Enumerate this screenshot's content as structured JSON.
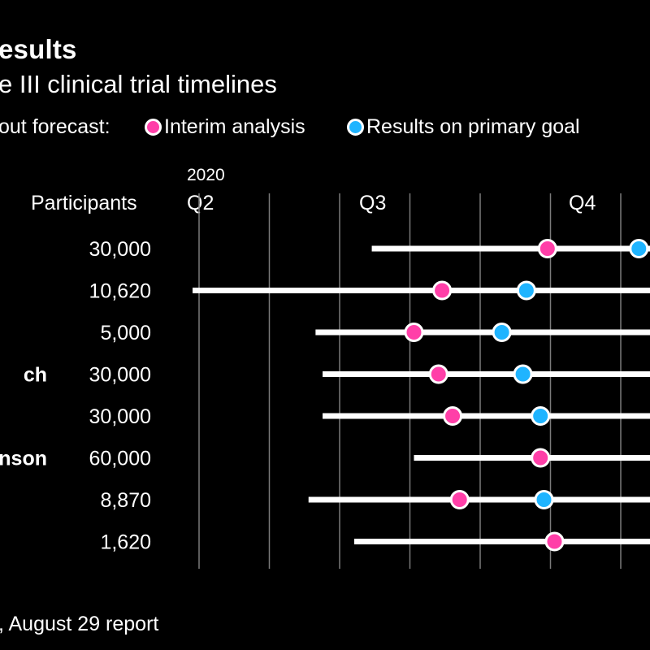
{
  "header": {
    "title": "esults",
    "subtitle": "e III clinical trial timelines",
    "legend_prefix": "out forecast:",
    "legend": [
      {
        "label": "Interim analysis",
        "color": "#ff3fa8"
      },
      {
        "label": "Results on primary goal",
        "color": "#1fb4ff"
      }
    ]
  },
  "footer": {
    "source": ", August 29 report"
  },
  "chart_data": {
    "type": "dot-range timeline",
    "year_label": "2020",
    "participants_header": "Participants",
    "quarters": [
      "Q2",
      "Q3",
      "Q4"
    ],
    "x_unit": "months into 2020 (Apr 1 = 3.0)",
    "xlim": [
      3.0,
      9.5
    ],
    "grid": true,
    "rows": [
      {
        "company": "",
        "participants": "30,000",
        "start": 5.55,
        "interim": 8.05,
        "primary": 9.35
      },
      {
        "company": "",
        "participants": "10,620",
        "start": 3.0,
        "interim": 6.55,
        "primary": 7.75
      },
      {
        "company": "",
        "participants": "5,000",
        "start": 4.75,
        "interim": 6.15,
        "primary": 7.4
      },
      {
        "company": "ch",
        "participants": "30,000",
        "start": 4.85,
        "interim": 6.5,
        "primary": 7.7
      },
      {
        "company": "",
        "participants": "30,000",
        "start": 4.85,
        "interim": 6.7,
        "primary": 7.95
      },
      {
        "company": "nson",
        "participants": "60,000",
        "start": 6.15,
        "interim": 7.95,
        "primary": null
      },
      {
        "company": "",
        "participants": "8,870",
        "start": 4.65,
        "interim": 6.8,
        "primary": 8.0
      },
      {
        "company": "",
        "participants": "1,620",
        "start": 5.3,
        "interim": 8.15,
        "primary": null
      }
    ]
  }
}
